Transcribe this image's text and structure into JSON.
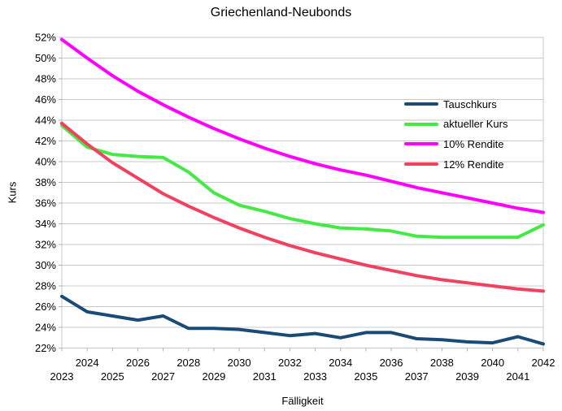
{
  "title": "Griechenland-Neubonds",
  "chart_data": {
    "type": "line",
    "title": "Griechenland-Neubonds",
    "xlabel": "Fälligkeit",
    "ylabel": "Kurs",
    "x": [
      2023,
      2024,
      2025,
      2026,
      2027,
      2028,
      2029,
      2030,
      2031,
      2032,
      2033,
      2034,
      2035,
      2036,
      2037,
      2038,
      2039,
      2040,
      2041,
      2042
    ],
    "series": [
      {
        "name": "Tauschkurs",
        "color": "#1A4B76",
        "values": [
          27.0,
          25.5,
          25.1,
          24.7,
          25.1,
          23.9,
          23.9,
          23.8,
          23.5,
          23.2,
          23.4,
          23.0,
          23.5,
          23.5,
          22.9,
          22.8,
          22.6,
          22.5,
          23.1,
          22.4
        ]
      },
      {
        "name": "aktueller Kurs",
        "color": "#44E944",
        "values": [
          43.5,
          41.4,
          40.7,
          40.5,
          40.4,
          39.0,
          37.0,
          35.8,
          35.2,
          34.5,
          34.0,
          33.6,
          33.5,
          33.3,
          32.8,
          32.7,
          32.7,
          32.7,
          32.7,
          33.9
        ]
      },
      {
        "name": "10% Rendite",
        "color": "#FF00FF",
        "values": [
          51.8,
          50.0,
          48.3,
          46.8,
          45.5,
          44.3,
          43.2,
          42.2,
          41.3,
          40.5,
          39.8,
          39.2,
          38.7,
          38.1,
          37.5,
          37.0,
          36.5,
          36.0,
          35.5,
          35.1
        ]
      },
      {
        "name": "12% Rendite",
        "color": "#F2415F",
        "values": [
          43.7,
          41.7,
          39.9,
          38.4,
          36.9,
          35.7,
          34.6,
          33.6,
          32.7,
          31.9,
          31.2,
          30.6,
          30.0,
          29.5,
          29.0,
          28.6,
          28.3,
          28.0,
          27.7,
          27.5
        ]
      }
    ],
    "ylim": [
      22,
      52
    ],
    "ytick_step": 2,
    "ytick_suffix": "%",
    "grid": "horizontal",
    "legend_position": "inside-right",
    "x_labels_staggered": true
  },
  "colors": {
    "background": "#FFFFFF",
    "gridline": "#C8C8C8",
    "tick": "#B0B0B0",
    "text": "#000000"
  }
}
